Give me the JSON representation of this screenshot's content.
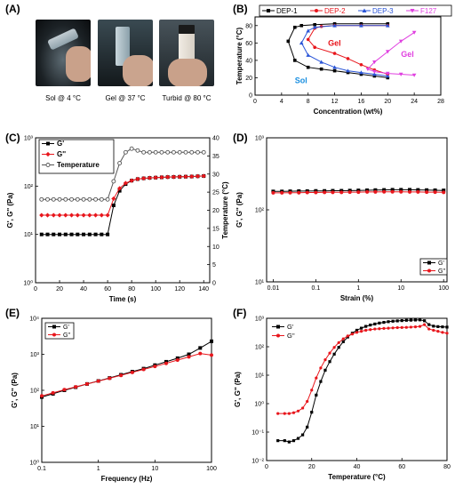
{
  "panels": {
    "A": {
      "label": "(A)",
      "captions": [
        "Sol @ 4 °C",
        "Gel @ 37 °C",
        "Turbid @ 80 °C"
      ]
    },
    "B": {
      "label": "(B)"
    },
    "C": {
      "label": "(C)"
    },
    "D": {
      "label": "(D)"
    },
    "E": {
      "label": "(E)"
    },
    "F": {
      "label": "(F)"
    }
  },
  "chart_data": [
    {
      "panel": "B",
      "type": "line",
      "xlabel": "Concentration (wt%)",
      "ylabel": "Temperature (°C)",
      "xlim": [
        0,
        28
      ],
      "ylim": [
        0,
        90
      ],
      "xticks": [
        0,
        4,
        8,
        12,
        16,
        20,
        24,
        28
      ],
      "yticks": [
        0,
        20,
        40,
        60,
        80
      ],
      "legend": "top",
      "annotations": [
        {
          "text": "Gel",
          "color": "#e8161c",
          "x": 11,
          "y": 57
        },
        {
          "text": "Gel",
          "color": "#e040e0",
          "x": 22,
          "y": 44
        },
        {
          "text": "Sol",
          "color": "#1a8fe0",
          "x": 6,
          "y": 14
        }
      ],
      "series": [
        {
          "name": "DEP-1",
          "color": "#000000",
          "marker": "square",
          "points": [
            [
              20,
              82
            ],
            [
              16,
              82
            ],
            [
              12,
              82
            ],
            [
              9,
              81
            ],
            [
              7,
              80
            ],
            [
              6,
              78
            ],
            [
              5,
              62
            ],
            [
              6,
              40
            ],
            [
              8,
              32
            ],
            [
              10,
              30
            ],
            [
              12,
              28
            ],
            [
              14,
              26
            ],
            [
              16,
              24
            ],
            [
              18,
              22
            ],
            [
              20,
              20
            ]
          ]
        },
        {
          "name": "DEP-2",
          "color": "#e8161c",
          "marker": "circle",
          "points": [
            [
              20,
              80
            ],
            [
              16,
              80
            ],
            [
              12,
              80
            ],
            [
              10,
              79
            ],
            [
              9,
              77
            ],
            [
              8,
              64
            ],
            [
              9,
              55
            ],
            [
              12,
              48
            ],
            [
              14,
              42
            ],
            [
              16,
              35
            ],
            [
              18,
              29
            ],
            [
              20,
              24
            ]
          ]
        },
        {
          "name": "DEP-3",
          "color": "#2a55d8",
          "marker": "triangle",
          "points": [
            [
              20,
              80
            ],
            [
              16,
              80
            ],
            [
              12,
              80
            ],
            [
              9,
              78
            ],
            [
              8,
              74
            ],
            [
              7,
              60
            ],
            [
              8,
              46
            ],
            [
              10,
              38
            ],
            [
              12,
              32
            ],
            [
              14,
              28
            ],
            [
              16,
              26
            ],
            [
              18,
              24
            ],
            [
              20,
              22
            ]
          ]
        },
        {
          "name": "F127",
          "color": "#e040e0",
          "marker": "triangle-down",
          "points": [
            [
              24,
              72
            ],
            [
              22,
              62
            ],
            [
              20,
              50
            ],
            [
              18,
              38
            ],
            [
              17,
              30
            ],
            [
              18,
              27
            ],
            [
              20,
              25
            ],
            [
              22,
              24
            ],
            [
              24,
              23
            ]
          ]
        }
      ]
    },
    {
      "panel": "C",
      "type": "line",
      "xlabel": "Time (s)",
      "ylabel": "G', G'' (Pa)",
      "ylabel_right": "Temperature (°C)",
      "xlim": [
        0,
        145
      ],
      "ylim": [
        1,
        1000
      ],
      "yscale": "log",
      "ylim_right": [
        0,
        40
      ],
      "xticks": [
        0,
        20,
        40,
        60,
        80,
        100,
        120,
        140
      ],
      "yticks": [
        1,
        10,
        100,
        1000
      ],
      "yticks_right": [
        0,
        5,
        10,
        15,
        20,
        25,
        30,
        35,
        40
      ],
      "legend": "top-left",
      "x": [
        5,
        10,
        15,
        20,
        25,
        30,
        35,
        40,
        45,
        50,
        55,
        60,
        65,
        70,
        75,
        80,
        85,
        90,
        95,
        100,
        105,
        110,
        115,
        120,
        125,
        130,
        135,
        140
      ],
      "series": [
        {
          "name": "G'",
          "color": "#000000",
          "marker": "square",
          "axis": "left",
          "values": [
            10,
            10,
            10,
            10,
            10,
            10,
            10,
            10,
            10,
            10,
            10,
            10,
            40,
            80,
            110,
            130,
            140,
            145,
            148,
            150,
            152,
            154,
            155,
            156,
            157,
            158,
            160,
            162
          ]
        },
        {
          "name": "G''",
          "color": "#e8161c",
          "marker": "diamond",
          "axis": "left",
          "values": [
            25,
            25,
            25,
            25,
            25,
            25,
            25,
            25,
            25,
            25,
            25,
            25,
            55,
            90,
            115,
            130,
            140,
            145,
            148,
            150,
            152,
            154,
            155,
            156,
            157,
            158,
            160,
            162
          ]
        },
        {
          "name": "Temperature",
          "color": "#555555",
          "marker": "open-circle",
          "axis": "right",
          "values": [
            23,
            23,
            23,
            23,
            23,
            23,
            23,
            23,
            23,
            23,
            23,
            23,
            28,
            33,
            36,
            37,
            36.5,
            36,
            36,
            36,
            36,
            36,
            36,
            36,
            36,
            36,
            36,
            36
          ]
        }
      ]
    },
    {
      "panel": "D",
      "type": "line",
      "xlabel": "Strain (%)",
      "ylabel": "G', G'' (Pa)",
      "xlim": [
        0.007,
        120
      ],
      "xscale": "log",
      "ylim": [
        10,
        1000
      ],
      "yscale": "log",
      "xticks": [
        0.01,
        0.1,
        1,
        10,
        100
      ],
      "xticklabels": [
        "0.01",
        "0.1",
        "1",
        "10",
        "100"
      ],
      "yticks": [
        10,
        100,
        1000
      ],
      "legend": "bottom-right",
      "x": [
        0.01,
        0.016,
        0.025,
        0.04,
        0.063,
        0.1,
        0.16,
        0.25,
        0.4,
        0.63,
        1,
        1.6,
        2.5,
        4,
        6.3,
        10,
        16,
        25,
        40,
        63,
        100
      ],
      "series": [
        {
          "name": "G'",
          "color": "#000000",
          "marker": "square",
          "values": [
            180,
            180,
            181,
            182,
            182,
            183,
            183,
            184,
            184,
            185,
            186,
            187,
            188,
            189,
            190,
            190,
            190,
            189,
            188,
            187,
            186
          ]
        },
        {
          "name": "G''",
          "color": "#e8161c",
          "marker": "circle",
          "values": [
            172,
            172,
            173,
            173,
            174,
            174,
            175,
            175,
            175,
            176,
            176,
            177,
            177,
            178,
            178,
            178,
            177,
            177,
            176,
            176,
            175
          ]
        }
      ]
    },
    {
      "panel": "E",
      "type": "line",
      "xlabel": "Frequency (Hz)",
      "ylabel": "G', G'' (Pa)",
      "xlim": [
        0.1,
        100
      ],
      "xscale": "log",
      "ylim": [
        1,
        10000
      ],
      "yscale": "log",
      "xticks": [
        0.1,
        1,
        10,
        100
      ],
      "xticklabels": [
        "0.1",
        "1",
        "10",
        "100"
      ],
      "yticks": [
        1,
        10,
        100,
        1000,
        10000
      ],
      "legend": "top-left",
      "x": [
        0.1,
        0.158,
        0.251,
        0.398,
        0.631,
        1,
        1.58,
        2.51,
        3.98,
        6.31,
        10,
        15.8,
        25.1,
        39.8,
        63.1,
        100
      ],
      "series": [
        {
          "name": "G'",
          "color": "#000000",
          "marker": "square",
          "values": [
            65,
            80,
            100,
            122,
            150,
            182,
            220,
            270,
            330,
            400,
            500,
            620,
            780,
            1000,
            1500,
            2300
          ]
        },
        {
          "name": "G''",
          "color": "#e8161c",
          "marker": "circle",
          "values": [
            70,
            85,
            104,
            125,
            150,
            180,
            215,
            260,
            315,
            380,
            460,
            560,
            690,
            850,
            1050,
            950
          ]
        }
      ]
    },
    {
      "panel": "F",
      "type": "line",
      "xlabel": "Temperature (°C)",
      "ylabel": "G', G'' (Pa)",
      "xlim": [
        0,
        80
      ],
      "ylim": [
        0.01,
        1000
      ],
      "yscale": "log",
      "xticks": [
        0,
        20,
        40,
        60,
        80
      ],
      "yticks": [
        0.01,
        0.1,
        1,
        10,
        100,
        1000
      ],
      "legend": "top-left",
      "x": [
        5,
        8,
        10,
        12,
        14,
        16,
        18,
        20,
        22,
        24,
        26,
        28,
        30,
        32,
        34,
        36,
        38,
        40,
        42,
        44,
        46,
        48,
        50,
        52,
        54,
        56,
        58,
        60,
        62,
        64,
        66,
        68,
        70,
        72,
        74,
        76,
        78,
        80
      ],
      "series": [
        {
          "name": "G'",
          "color": "#000000",
          "marker": "square",
          "values": [
            0.05,
            0.05,
            0.045,
            0.05,
            0.06,
            0.08,
            0.15,
            0.5,
            2,
            6,
            15,
            30,
            55,
            95,
            150,
            220,
            300,
            380,
            450,
            520,
            580,
            630,
            680,
            720,
            760,
            790,
            810,
            830,
            850,
            860,
            870,
            880,
            820,
            600,
            530,
            510,
            500,
            490
          ]
        },
        {
          "name": "G''",
          "color": "#e8161c",
          "marker": "circle",
          "values": [
            0.45,
            0.45,
            0.45,
            0.48,
            0.55,
            0.7,
            1.2,
            3,
            8,
            18,
            35,
            60,
            95,
            140,
            190,
            240,
            280,
            320,
            350,
            380,
            400,
            420,
            430,
            440,
            450,
            460,
            470,
            475,
            480,
            490,
            500,
            520,
            600,
            420,
            380,
            350,
            320,
            300
          ]
        }
      ]
    }
  ]
}
